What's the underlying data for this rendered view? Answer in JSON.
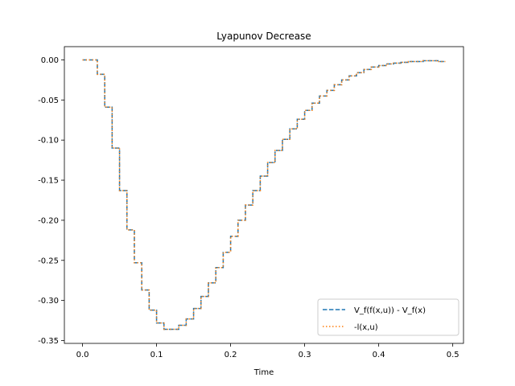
{
  "chart_data": {
    "type": "line",
    "title": "Lyapunov Decrease",
    "xlabel": "Time",
    "ylabel": "",
    "xlim": [
      -0.0245,
      0.5145
    ],
    "ylim": [
      -0.3535,
      0.0165
    ],
    "xticks": [
      0.0,
      0.1,
      0.2,
      0.3,
      0.4,
      0.5
    ],
    "xtick_labels": [
      "0.0",
      "0.1",
      "0.2",
      "0.3",
      "0.4",
      "0.5"
    ],
    "yticks": [
      0.0,
      -0.05,
      -0.1,
      -0.15,
      -0.2,
      -0.25,
      -0.3,
      -0.35
    ],
    "ytick_labels": [
      "0.00",
      "-0.05",
      "-0.10",
      "-0.15",
      "-0.20",
      "-0.25",
      "-0.30",
      "-0.35"
    ],
    "step": "post",
    "x": [
      0.0,
      0.01,
      0.02,
      0.03,
      0.04,
      0.05,
      0.06,
      0.07,
      0.08,
      0.09,
      0.1,
      0.11,
      0.12,
      0.13,
      0.14,
      0.15,
      0.16,
      0.17,
      0.18,
      0.19,
      0.2,
      0.21,
      0.22,
      0.23,
      0.24,
      0.25,
      0.26,
      0.27,
      0.28,
      0.29,
      0.3,
      0.31,
      0.32,
      0.33,
      0.34,
      0.35,
      0.36,
      0.37,
      0.38,
      0.39,
      0.4,
      0.41,
      0.42,
      0.43,
      0.44,
      0.45,
      0.46,
      0.47,
      0.48,
      0.49
    ],
    "series": [
      {
        "name": "V_f(f(x,u)) - V_f(x)",
        "style": "dashed",
        "color": "#1f77b4",
        "values": [
          0.0,
          0.0,
          -0.018,
          -0.059,
          -0.11,
          -0.163,
          -0.212,
          -0.253,
          -0.287,
          -0.312,
          -0.328,
          -0.336,
          -0.336,
          -0.331,
          -0.323,
          -0.31,
          -0.295,
          -0.278,
          -0.259,
          -0.24,
          -0.22,
          -0.2,
          -0.181,
          -0.163,
          -0.145,
          -0.128,
          -0.113,
          -0.099,
          -0.086,
          -0.074,
          -0.063,
          -0.054,
          -0.045,
          -0.038,
          -0.031,
          -0.025,
          -0.02,
          -0.016,
          -0.012,
          -0.009,
          -0.007,
          -0.005,
          -0.004,
          -0.003,
          -0.002,
          -0.002,
          -0.001,
          -0.001,
          -0.002,
          -0.002
        ]
      },
      {
        "name": "-l(x,u)",
        "style": "dotted",
        "color": "#ff7f0e",
        "values": [
          0.0,
          0.0,
          -0.018,
          -0.059,
          -0.11,
          -0.163,
          -0.212,
          -0.253,
          -0.287,
          -0.312,
          -0.328,
          -0.336,
          -0.336,
          -0.331,
          -0.323,
          -0.31,
          -0.295,
          -0.278,
          -0.259,
          -0.24,
          -0.22,
          -0.2,
          -0.181,
          -0.163,
          -0.145,
          -0.128,
          -0.113,
          -0.099,
          -0.086,
          -0.074,
          -0.063,
          -0.054,
          -0.045,
          -0.038,
          -0.031,
          -0.025,
          -0.02,
          -0.016,
          -0.012,
          -0.009,
          -0.007,
          -0.005,
          -0.004,
          -0.003,
          -0.002,
          -0.002,
          -0.001,
          -0.001,
          -0.002,
          -0.002
        ]
      }
    ],
    "legend_position": "lower right",
    "grid": false
  }
}
